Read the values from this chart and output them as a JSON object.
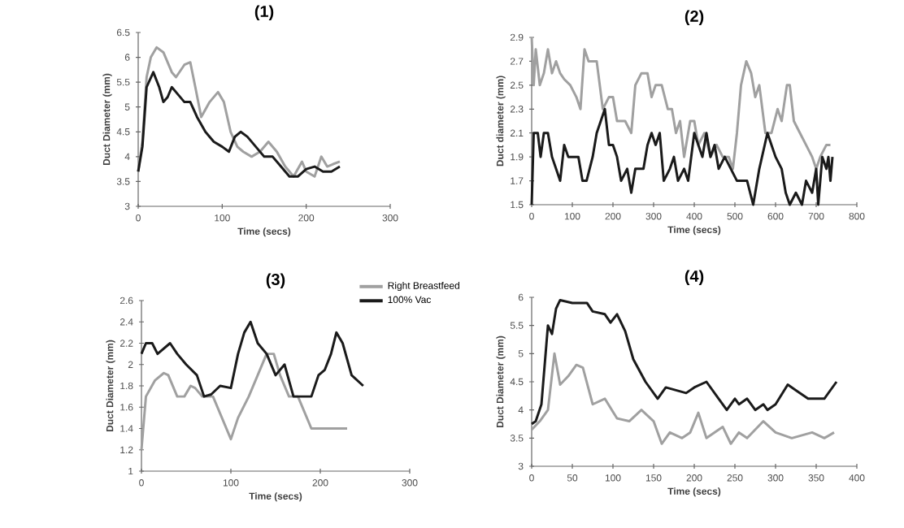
{
  "chart_data": [
    {
      "type": "line",
      "title": "(1)",
      "xlabel": "Time (secs)",
      "ylabel": "Duct Diameter (mm)",
      "xlim": [
        0,
        300
      ],
      "xticks": [
        0,
        100,
        200,
        300
      ],
      "ylim": [
        3,
        6.5
      ],
      "yticks": [
        3,
        3.5,
        4,
        4.5,
        5,
        5.5,
        6,
        6.5
      ],
      "series": [
        {
          "color": "#a0a0a0",
          "x": [
            0,
            5,
            10,
            15,
            22,
            30,
            40,
            45,
            55,
            62,
            68,
            75,
            85,
            95,
            102,
            110,
            118,
            125,
            135,
            145,
            155,
            165,
            175,
            185,
            195,
            200,
            210,
            218,
            225,
            232,
            240
          ],
          "values": [
            3.7,
            4.3,
            5.6,
            6.0,
            6.2,
            6.1,
            5.7,
            5.6,
            5.85,
            5.9,
            5.4,
            4.8,
            5.1,
            5.3,
            5.1,
            4.5,
            4.2,
            4.1,
            4.0,
            4.1,
            4.3,
            4.1,
            3.8,
            3.6,
            3.9,
            3.7,
            3.6,
            4.0,
            3.8,
            3.85,
            3.9
          ]
        },
        {
          "color": "#1a1a1a",
          "x": [
            0,
            5,
            10,
            18,
            25,
            30,
            35,
            40,
            45,
            55,
            62,
            70,
            80,
            90,
            100,
            108,
            115,
            122,
            130,
            140,
            150,
            160,
            170,
            180,
            190,
            200,
            210,
            220,
            230,
            240
          ],
          "values": [
            3.7,
            4.2,
            5.4,
            5.7,
            5.4,
            5.1,
            5.2,
            5.4,
            5.3,
            5.1,
            5.1,
            4.8,
            4.5,
            4.3,
            4.2,
            4.1,
            4.4,
            4.5,
            4.4,
            4.2,
            4.0,
            4.0,
            3.8,
            3.6,
            3.6,
            3.75,
            3.8,
            3.7,
            3.7,
            3.8
          ]
        }
      ]
    },
    {
      "type": "line",
      "title": "(2)",
      "xlabel": "Time (secs)",
      "ylabel": "Duct diameter (mm)",
      "xlim": [
        0,
        800
      ],
      "xticks": [
        0,
        100,
        200,
        300,
        400,
        500,
        600,
        700,
        800
      ],
      "ylim": [
        1.5,
        2.9
      ],
      "yticks": [
        1.5,
        1.7,
        1.9,
        2.1,
        2.3,
        2.5,
        2.7,
        2.9
      ],
      "series": [
        {
          "color": "#a0a0a0",
          "x": [
            0,
            5,
            10,
            20,
            30,
            40,
            50,
            60,
            70,
            80,
            95,
            110,
            120,
            130,
            140,
            160,
            175,
            190,
            200,
            210,
            230,
            245,
            255,
            270,
            285,
            295,
            305,
            320,
            335,
            345,
            355,
            365,
            375,
            390,
            400,
            410,
            425,
            440,
            455,
            470,
            485,
            495,
            505,
            515,
            528,
            540,
            550,
            560,
            575,
            590,
            605,
            615,
            628,
            635,
            645,
            660,
            675,
            690,
            700,
            710,
            725,
            735
          ],
          "values": [
            2.9,
            2.5,
            2.8,
            2.5,
            2.6,
            2.8,
            2.6,
            2.7,
            2.6,
            2.55,
            2.5,
            2.4,
            2.3,
            2.8,
            2.7,
            2.7,
            2.3,
            2.4,
            2.4,
            2.2,
            2.2,
            2.1,
            2.5,
            2.6,
            2.6,
            2.4,
            2.5,
            2.5,
            2.3,
            2.3,
            2.1,
            2.2,
            1.9,
            2.2,
            2.2,
            2.0,
            2.1,
            1.9,
            2.0,
            1.9,
            1.9,
            1.8,
            2.1,
            2.5,
            2.7,
            2.6,
            2.4,
            2.5,
            2.1,
            2.1,
            2.3,
            2.2,
            2.5,
            2.5,
            2.2,
            2.1,
            2.0,
            1.9,
            1.8,
            1.9,
            2.0,
            2.0
          ]
        },
        {
          "color": "#1a1a1a",
          "x": [
            0,
            5,
            15,
            22,
            30,
            40,
            50,
            60,
            70,
            80,
            90,
            100,
            115,
            125,
            135,
            150,
            160,
            180,
            190,
            200,
            210,
            220,
            235,
            245,
            255,
            275,
            285,
            295,
            305,
            315,
            325,
            340,
            350,
            360,
            375,
            385,
            400,
            410,
            420,
            430,
            440,
            450,
            460,
            475,
            490,
            505,
            530,
            545,
            560,
            580,
            590,
            600,
            615,
            625,
            635,
            650,
            665,
            675,
            690,
            700,
            705,
            715,
            725,
            730,
            735,
            740
          ],
          "values": [
            1.5,
            2.1,
            2.1,
            1.9,
            2.1,
            2.1,
            1.9,
            1.8,
            1.7,
            2.0,
            1.9,
            1.9,
            1.9,
            1.7,
            1.7,
            1.9,
            2.1,
            2.3,
            2.0,
            2.0,
            1.9,
            1.7,
            1.8,
            1.6,
            1.8,
            1.8,
            2.0,
            2.1,
            2.0,
            2.1,
            1.7,
            1.8,
            1.9,
            1.7,
            1.8,
            1.7,
            2.1,
            2.0,
            1.9,
            2.1,
            1.9,
            2.0,
            1.8,
            1.9,
            1.8,
            1.7,
            1.7,
            1.5,
            1.8,
            2.1,
            2.0,
            1.9,
            1.8,
            1.6,
            1.5,
            1.6,
            1.5,
            1.7,
            1.6,
            1.8,
            1.5,
            1.9,
            1.8,
            1.9,
            1.7,
            1.9
          ]
        }
      ]
    },
    {
      "type": "line",
      "title": "(3)",
      "xlabel": "Time (secs)",
      "ylabel": "Duct Diameter (mm)",
      "xlim": [
        0,
        300
      ],
      "xticks": [
        0,
        100,
        200,
        300
      ],
      "ylim": [
        1,
        2.6
      ],
      "yticks": [
        1,
        1.2,
        1.4,
        1.6,
        1.8,
        2,
        2.2,
        2.4,
        2.6
      ],
      "legend": "top right",
      "series": [
        {
          "name": "Right Breastfeed",
          "color": "#a0a0a0",
          "x": [
            0,
            5,
            15,
            25,
            30,
            40,
            48,
            55,
            60,
            68,
            80,
            90,
            100,
            108,
            120,
            130,
            140,
            148,
            155,
            165,
            175,
            190,
            200,
            230
          ],
          "values": [
            1.2,
            1.7,
            1.85,
            1.92,
            1.9,
            1.7,
            1.7,
            1.8,
            1.78,
            1.7,
            1.7,
            1.5,
            1.3,
            1.5,
            1.7,
            1.9,
            2.1,
            2.1,
            1.9,
            1.7,
            1.7,
            1.4,
            1.4,
            1.4
          ]
        },
        {
          "name": "100% Vac",
          "color": "#1a1a1a",
          "x": [
            0,
            5,
            12,
            18,
            25,
            32,
            40,
            50,
            62,
            70,
            78,
            88,
            100,
            108,
            115,
            122,
            130,
            140,
            150,
            160,
            170,
            190,
            198,
            205,
            212,
            218,
            225,
            235,
            248
          ],
          "values": [
            2.1,
            2.2,
            2.2,
            2.1,
            2.15,
            2.2,
            2.1,
            2.0,
            1.9,
            1.7,
            1.72,
            1.8,
            1.78,
            2.1,
            2.3,
            2.4,
            2.2,
            2.1,
            1.9,
            2.0,
            1.7,
            1.7,
            1.9,
            1.95,
            2.1,
            2.3,
            2.2,
            1.9,
            1.8
          ]
        }
      ]
    },
    {
      "type": "line",
      "title": "(4)",
      "xlabel": "Time (secs)",
      "ylabel": "Duct Diameter (mm)",
      "xlim": [
        0,
        400
      ],
      "xticks": [
        0,
        50,
        100,
        150,
        200,
        250,
        300,
        350,
        400
      ],
      "ylim": [
        3,
        6
      ],
      "yticks": [
        3,
        3.5,
        4,
        4.5,
        5,
        5.5,
        6
      ],
      "series": [
        {
          "color": "#a0a0a0",
          "x": [
            0,
            10,
            20,
            28,
            35,
            45,
            55,
            63,
            75,
            90,
            105,
            120,
            135,
            150,
            160,
            170,
            185,
            195,
            205,
            215,
            235,
            245,
            255,
            265,
            285,
            300,
            320,
            345,
            360,
            372
          ],
          "values": [
            3.65,
            3.8,
            4.0,
            5.0,
            4.45,
            4.6,
            4.8,
            4.75,
            4.1,
            4.2,
            3.85,
            3.8,
            4.0,
            3.8,
            3.4,
            3.6,
            3.5,
            3.6,
            3.95,
            3.5,
            3.7,
            3.4,
            3.6,
            3.5,
            3.8,
            3.6,
            3.5,
            3.6,
            3.5,
            3.6
          ]
        },
        {
          "color": "#1a1a1a",
          "x": [
            0,
            5,
            12,
            20,
            25,
            30,
            35,
            50,
            68,
            75,
            90,
            97,
            105,
            115,
            125,
            140,
            155,
            165,
            190,
            200,
            215,
            230,
            240,
            250,
            255,
            265,
            275,
            285,
            290,
            300,
            315,
            325,
            340,
            360,
            375
          ],
          "values": [
            3.75,
            3.8,
            4.1,
            5.5,
            5.35,
            5.8,
            5.95,
            5.9,
            5.9,
            5.75,
            5.7,
            5.55,
            5.7,
            5.4,
            4.9,
            4.5,
            4.2,
            4.4,
            4.3,
            4.4,
            4.5,
            4.2,
            4.0,
            4.2,
            4.1,
            4.2,
            4.0,
            4.1,
            4.0,
            4.1,
            4.45,
            4.35,
            4.2,
            4.2,
            4.5
          ]
        }
      ]
    }
  ]
}
